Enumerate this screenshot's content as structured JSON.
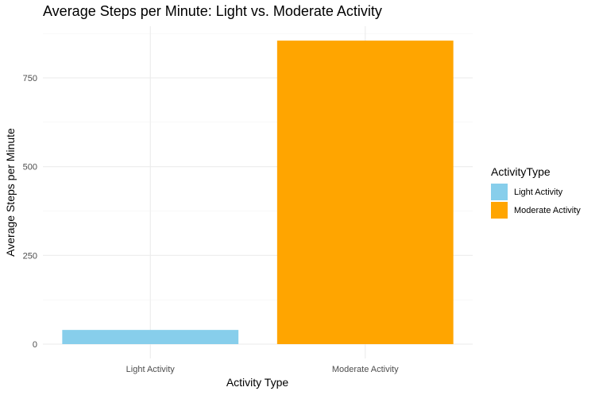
{
  "chart_data": {
    "type": "bar",
    "title": "Average Steps per Minute: Light vs. Moderate Activity",
    "xlabel": "Activity Type",
    "ylabel": "Average Steps per Minute",
    "categories": [
      "Light Activity",
      "Moderate Activity"
    ],
    "values": [
      40,
      855
    ],
    "colors": [
      "#87CEEB",
      "#FFA500"
    ],
    "ylim": [
      0,
      900
    ],
    "yticks": [
      0,
      250,
      500,
      750
    ],
    "grid": true,
    "legend": {
      "title": "ActivityType",
      "placement": "right",
      "entries": [
        "Light Activity",
        "Moderate Activity"
      ]
    }
  }
}
